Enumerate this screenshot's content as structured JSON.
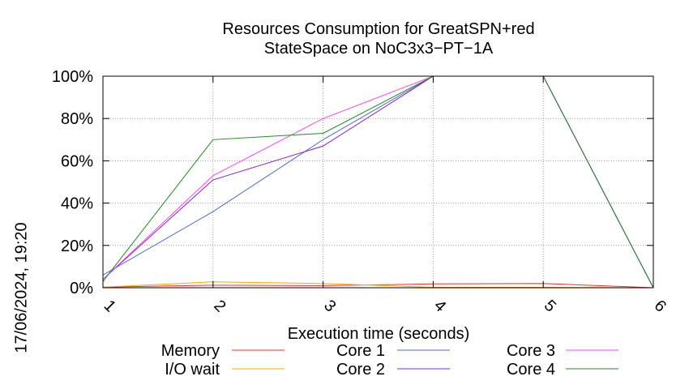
{
  "timestamp": "17/06/2024, 19:20",
  "chart_data": {
    "type": "line",
    "title": [
      "Resources Consumption for GreatSPN+red",
      "StateSpace on NoC3x3−PT−1A"
    ],
    "xlabel": "Execution time (seconds)",
    "ylabel": "",
    "x": [
      1,
      2,
      3,
      4,
      5,
      6
    ],
    "xlim": [
      1,
      6
    ],
    "ylim": [
      0,
      100
    ],
    "x_ticks": [
      "1",
      "2",
      "3",
      "4",
      "5",
      "6"
    ],
    "y_ticks": [
      {
        "value": 0,
        "label": "0%"
      },
      {
        "value": 20,
        "label": "20%"
      },
      {
        "value": 40,
        "label": "40%"
      },
      {
        "value": 60,
        "label": "60%"
      },
      {
        "value": 80,
        "label": "80%"
      },
      {
        "value": 100,
        "label": "100%"
      }
    ],
    "grid": true,
    "legend_position": "bottom",
    "series": [
      {
        "name": "Memory",
        "color": "#ff2a2a",
        "values": [
          0.3,
          1.2,
          1.0,
          1.8,
          2.0,
          0
        ]
      },
      {
        "name": "I/O wait",
        "color": "#ffa500",
        "values": [
          0.3,
          2.8,
          2.0,
          0.2,
          0.2,
          0
        ]
      },
      {
        "name": "Core 1",
        "color": "#4a6fd1",
        "values": [
          6,
          36,
          70,
          100,
          100,
          0
        ]
      },
      {
        "name": "Core 2",
        "color": "#8a1fd6",
        "values": [
          4,
          51,
          67,
          100,
          100,
          0
        ]
      },
      {
        "name": "Core 3",
        "color": "#ff44ff",
        "values": [
          4,
          53,
          80,
          100,
          100,
          0
        ]
      },
      {
        "name": "Core 4",
        "color": "#1f8a1f",
        "values": [
          3,
          70,
          73,
          100,
          100,
          0
        ]
      }
    ]
  }
}
